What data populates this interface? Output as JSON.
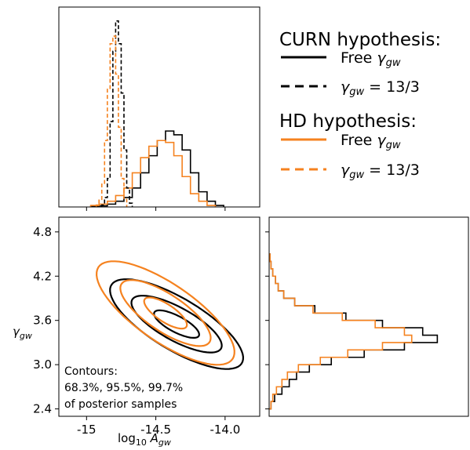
{
  "colors": {
    "curn": "#000000",
    "hd": "#f5821f"
  },
  "legend": {
    "groups": [
      {
        "title": "CURN hypothesis:",
        "color": "#000000",
        "entries": [
          {
            "label": "Free γ_gw",
            "style": "solid"
          },
          {
            "label": "γ_gw = 13/3",
            "style": "dashed"
          }
        ]
      },
      {
        "title": "HD hypothesis:",
        "color": "#f5821f",
        "entries": [
          {
            "label": "Free γ_gw",
            "style": "solid"
          },
          {
            "label": "γ_gw = 13/3",
            "style": "dashed"
          }
        ]
      }
    ]
  },
  "annotation": [
    "Contours:",
    "68.3%, 95.5%, 99.7%",
    "of posterior samples"
  ],
  "xaxis": {
    "label": "log10 A_gw",
    "ticks": [
      -15,
      -14.5,
      -14.0
    ],
    "tick_labels": [
      "-15",
      "-14.5",
      "-14.0"
    ],
    "range": [
      -15.2,
      -13.75
    ]
  },
  "yaxis": {
    "label": "γ_gw",
    "ticks": [
      2.4,
      3.0,
      3.6,
      4.2,
      4.8
    ],
    "tick_labels": [
      "2.4",
      "3.0",
      "3.6",
      "4.2",
      "4.8"
    ],
    "range": [
      2.3,
      5.0
    ]
  },
  "chart_data": [
    {
      "type": "step-histogram",
      "panel": "top-left",
      "xlim": [
        -15.2,
        -13.75
      ],
      "series": [
        {
          "hypothesis": "CURN",
          "variant": "free",
          "style": "solid",
          "color": "#000000",
          "bins": [
            [
              -14.94,
              0.003
            ],
            [
              -14.88,
              0.006
            ],
            [
              -14.82,
              0.015
            ],
            [
              -14.76,
              0.03
            ],
            [
              -14.7,
              0.05
            ],
            [
              -14.64,
              0.1
            ],
            [
              -14.58,
              0.18
            ],
            [
              -14.52,
              0.27
            ],
            [
              -14.46,
              0.35
            ],
            [
              -14.4,
              0.4
            ],
            [
              -14.34,
              0.38
            ],
            [
              -14.28,
              0.3
            ],
            [
              -14.22,
              0.18
            ],
            [
              -14.16,
              0.08
            ],
            [
              -14.1,
              0.03
            ],
            [
              -14.04,
              0.008
            ]
          ]
        },
        {
          "hypothesis": "HD",
          "variant": "free",
          "style": "solid",
          "color": "#f5821f",
          "bins": [
            [
              -14.94,
              0.008
            ],
            [
              -14.88,
              0.015
            ],
            [
              -14.82,
              0.03
            ],
            [
              -14.76,
              0.06
            ],
            [
              -14.7,
              0.1
            ],
            [
              -14.64,
              0.18
            ],
            [
              -14.58,
              0.26
            ],
            [
              -14.52,
              0.32
            ],
            [
              -14.46,
              0.35
            ],
            [
              -14.4,
              0.34
            ],
            [
              -14.34,
              0.27
            ],
            [
              -14.28,
              0.16
            ],
            [
              -14.22,
              0.07
            ],
            [
              -14.16,
              0.03
            ],
            [
              -14.1,
              0.008
            ]
          ]
        },
        {
          "hypothesis": "CURN",
          "variant": "gamma=13/3",
          "style": "dashed",
          "color": "#000000",
          "bins": [
            [
              -14.88,
              0.01
            ],
            [
              -14.86,
              0.05
            ],
            [
              -14.84,
              0.15
            ],
            [
              -14.82,
              0.45
            ],
            [
              -14.8,
              0.82
            ],
            [
              -14.78,
              0.98
            ],
            [
              -14.76,
              0.86
            ],
            [
              -14.74,
              0.6
            ],
            [
              -14.72,
              0.3
            ],
            [
              -14.7,
              0.1
            ],
            [
              -14.68,
              0.02
            ]
          ]
        },
        {
          "hypothesis": "HD",
          "variant": "gamma=13/3",
          "style": "dashed",
          "color": "#f5821f",
          "bins": [
            [
              -14.92,
              0.01
            ],
            [
              -14.9,
              0.04
            ],
            [
              -14.88,
              0.12
            ],
            [
              -14.86,
              0.35
            ],
            [
              -14.84,
              0.62
            ],
            [
              -14.82,
              0.86
            ],
            [
              -14.8,
              0.9
            ],
            [
              -14.78,
              0.7
            ],
            [
              -14.76,
              0.42
            ],
            [
              -14.74,
              0.15
            ],
            [
              -14.72,
              0.04
            ]
          ]
        }
      ]
    },
    {
      "type": "contour",
      "panel": "bottom-left",
      "xlim": [
        -15.2,
        -13.75
      ],
      "ylim": [
        2.3,
        5.0
      ],
      "levels": [
        "68.3%",
        "95.5%",
        "99.7%"
      ],
      "series": [
        {
          "hypothesis": "CURN",
          "variant": "free",
          "color": "#000000",
          "center": [
            -14.35,
            3.55
          ],
          "half_width_log10A": [
            0.19,
            0.38,
            0.56
          ],
          "half_height_gamma": [
            0.3,
            0.62,
            0.98
          ]
        },
        {
          "hypothesis": "HD",
          "variant": "free",
          "color": "#f5821f",
          "center": [
            -14.43,
            3.7
          ],
          "half_width_log10A": [
            0.18,
            0.38,
            0.58
          ],
          "half_height_gamma": [
            0.34,
            0.72,
            1.13
          ]
        }
      ]
    },
    {
      "type": "step-histogram",
      "panel": "bottom-right",
      "orientation": "horizontal",
      "ylim": [
        2.3,
        5.0
      ],
      "series": [
        {
          "hypothesis": "CURN",
          "variant": "free",
          "style": "solid",
          "color": "#000000",
          "bins": [
            [
              2.45,
              0.01
            ],
            [
              2.55,
              0.03
            ],
            [
              2.65,
              0.07
            ],
            [
              2.75,
              0.11
            ],
            [
              2.85,
              0.15
            ],
            [
              2.95,
              0.22
            ],
            [
              3.05,
              0.34
            ],
            [
              3.15,
              0.52
            ],
            [
              3.25,
              0.74
            ],
            [
              3.35,
              0.92
            ],
            [
              3.45,
              0.84
            ],
            [
              3.55,
              0.62
            ],
            [
              3.65,
              0.42
            ],
            [
              3.75,
              0.25
            ],
            [
              3.85,
              0.14
            ],
            [
              3.95,
              0.08
            ],
            [
              4.05,
              0.05
            ],
            [
              4.15,
              0.035
            ],
            [
              4.25,
              0.02
            ],
            [
              4.35,
              0.01
            ],
            [
              4.45,
              0.005
            ]
          ]
        },
        {
          "hypothesis": "HD",
          "variant": "free",
          "style": "solid",
          "color": "#f5821f",
          "bins": [
            [
              2.45,
              0.01
            ],
            [
              2.55,
              0.02
            ],
            [
              2.65,
              0.04
            ],
            [
              2.75,
              0.07
            ],
            [
              2.85,
              0.1
            ],
            [
              2.95,
              0.16
            ],
            [
              3.05,
              0.28
            ],
            [
              3.15,
              0.43
            ],
            [
              3.25,
              0.62
            ],
            [
              3.35,
              0.78
            ],
            [
              3.45,
              0.74
            ],
            [
              3.55,
              0.58
            ],
            [
              3.65,
              0.4
            ],
            [
              3.75,
              0.24
            ],
            [
              3.85,
              0.14
            ],
            [
              3.95,
              0.08
            ],
            [
              4.05,
              0.05
            ],
            [
              4.15,
              0.035
            ],
            [
              4.25,
              0.02
            ],
            [
              4.35,
              0.01
            ],
            [
              4.45,
              0.005
            ]
          ]
        }
      ]
    }
  ]
}
